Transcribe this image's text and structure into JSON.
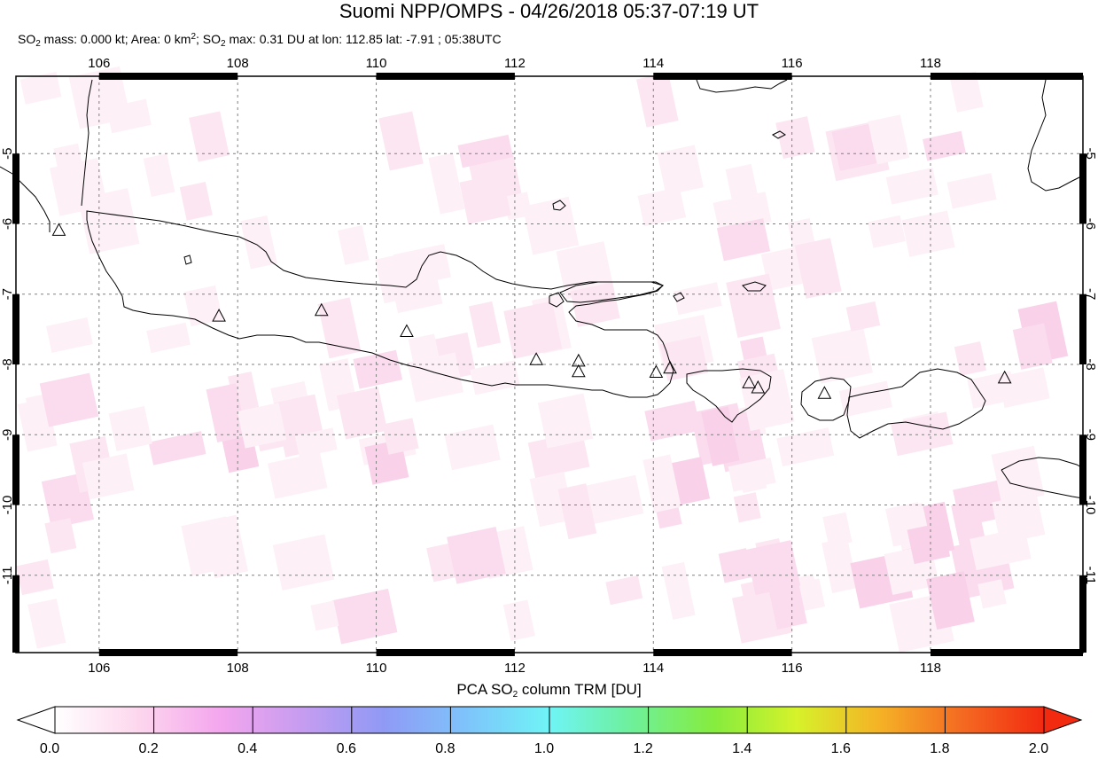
{
  "header": {
    "title": "Suomi NPP/OMPS - 04/26/2018 05:37-07:19 UT",
    "stats": {
      "mass_prefix": "SO",
      "mass_sub": "2",
      "mass_text": " mass: 0.000 kt; Area: 0 km",
      "area_sup": "2",
      "max_prefix": "; SO",
      "max_sub": "2",
      "max_text": " max: 0.31 DU at lon: 112.85 lat: -7.91 ; 05:38UTC"
    }
  },
  "map": {
    "lon_range": [
      104.8,
      120.2
    ],
    "lat_range": [
      -12.1,
      -3.9
    ],
    "lon_ticks": [
      106,
      108,
      110,
      112,
      114,
      116,
      118
    ],
    "lon_tick_labels": [
      "106",
      "108",
      "110",
      "112",
      "114",
      "116",
      "118"
    ],
    "lat_ticks": [
      -5,
      -6,
      -7,
      -8,
      -9,
      -10,
      -11
    ],
    "lat_tick_labels": [
      "-5",
      "-6",
      "-7",
      "-8",
      "-9",
      "-10",
      "-11"
    ],
    "grid": true,
    "grid_color": "#808080",
    "coastline_color": "#000000",
    "volcanoes": [
      {
        "lon": 105.42,
        "lat": -6.1
      },
      {
        "lon": 107.73,
        "lat": -7.32
      },
      {
        "lon": 109.21,
        "lat": -7.24
      },
      {
        "lon": 110.44,
        "lat": -7.54
      },
      {
        "lon": 112.31,
        "lat": -7.94
      },
      {
        "lon": 112.92,
        "lat": -7.96
      },
      {
        "lon": 112.92,
        "lat": -8.11
      },
      {
        "lon": 114.04,
        "lat": -8.12
      },
      {
        "lon": 114.24,
        "lat": -8.06
      },
      {
        "lon": 115.38,
        "lat": -8.27
      },
      {
        "lon": 115.51,
        "lat": -8.34
      },
      {
        "lon": 116.47,
        "lat": -8.42
      },
      {
        "lon": 119.07,
        "lat": -8.2
      }
    ]
  },
  "colorbar": {
    "title_prefix": "PCA SO",
    "title_sub": "2",
    "title_suffix": " column TRM [DU]",
    "min": 0.0,
    "max": 2.0,
    "tick_values": [
      0.0,
      0.2,
      0.4,
      0.6,
      0.8,
      1.0,
      1.2,
      1.4,
      1.6,
      1.8,
      2.0
    ],
    "tick_labels": [
      "0.0",
      "0.2",
      "0.4",
      "0.6",
      "0.8",
      "1.0",
      "1.2",
      "1.4",
      "1.6",
      "1.8",
      "2.0"
    ],
    "colors": [
      "#ffffff",
      "#fdd7ee",
      "#f4a6ee",
      "#c69cf0",
      "#8f9af5",
      "#7ec4fb",
      "#6ff4f6",
      "#6ef09a",
      "#86ec3e",
      "#d6f22a",
      "#f5b226",
      "#f46a22",
      "#f22a10"
    ]
  }
}
